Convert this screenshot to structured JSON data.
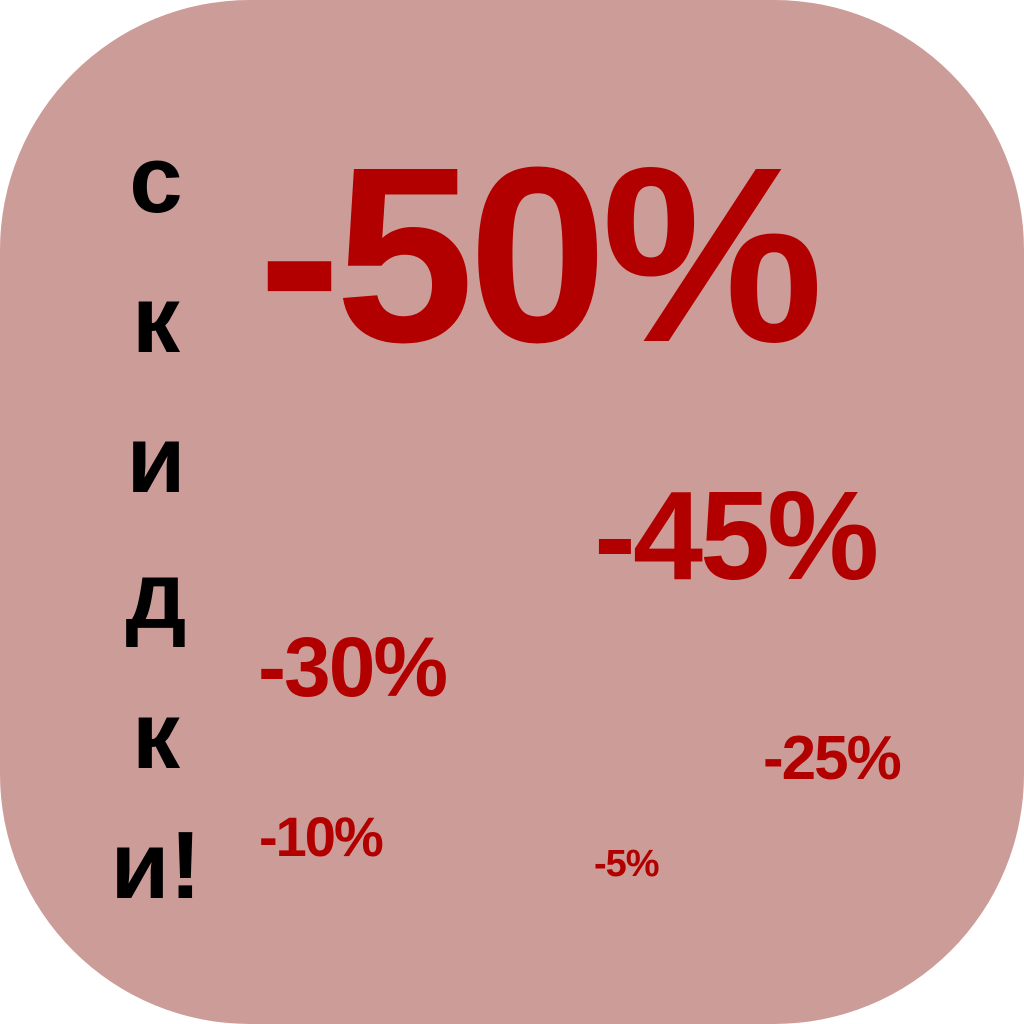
{
  "colors": {
    "background": "#cc9c98",
    "discount_text": "#b20000",
    "vertical_text": "#000000"
  },
  "vertical_label": {
    "chars": [
      "с",
      "к",
      "и",
      "д",
      "к",
      "и!"
    ]
  },
  "discounts": [
    {
      "label": "-50%"
    },
    {
      "label": "-45%"
    },
    {
      "label": "-30%"
    },
    {
      "label": "-25%"
    },
    {
      "label": "-10%"
    },
    {
      "label": "-5%"
    }
  ]
}
